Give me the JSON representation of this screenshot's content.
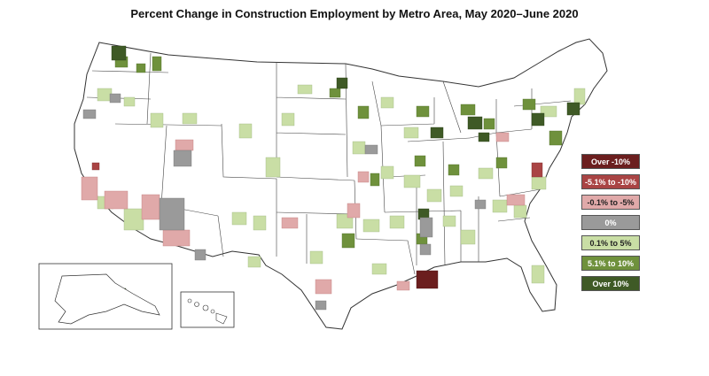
{
  "title": "Percent Change in Construction Employment by Metro Area, May 2020–June 2020",
  "legend": [
    {
      "label": "Over -10%",
      "color": "#6b1e1e",
      "text_color": "#ffffff"
    },
    {
      "label": "-5.1% to -10%",
      "color": "#a94444",
      "text_color": "#ffffff"
    },
    {
      "label": "-0.1% to -5%",
      "color": "#e0a9a9",
      "text_color": "#222222"
    },
    {
      "label": "0%",
      "color": "#9a9a9a",
      "text_color": "#ffffff"
    },
    {
      "label": "0.1% to 5%",
      "color": "#c9dea5",
      "text_color": "#222222"
    },
    {
      "label": "5.1% to 10%",
      "color": "#6f913c",
      "text_color": "#ffffff"
    },
    {
      "label": "Over 10%",
      "color": "#3f5a26",
      "text_color": "#ffffff"
    }
  ]
}
